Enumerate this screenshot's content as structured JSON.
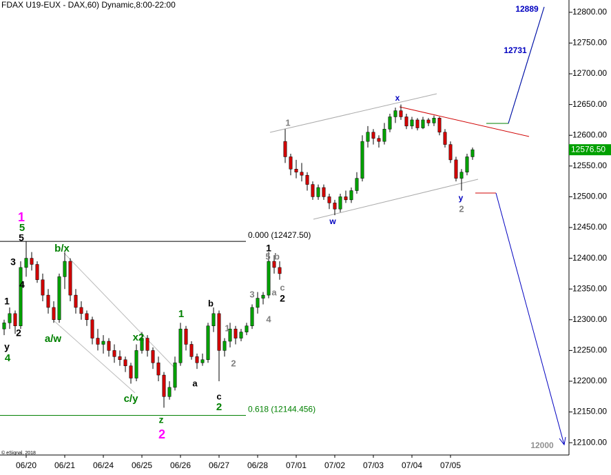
{
  "chart_data": {
    "type": "candlestick",
    "title": "FDAX U19-EUX - DAX,60) Dynamic,8:00-22:00",
    "credit": "© eSignal, 2018",
    "x": [
      0,
      1,
      2,
      3,
      4,
      5,
      6,
      7,
      8,
      9,
      10,
      11,
      12,
      13,
      14,
      15,
      16,
      17,
      18,
      19,
      20,
      21,
      22,
      23,
      24,
      25,
      26,
      27,
      28,
      29,
      30,
      31,
      32,
      33,
      34,
      35,
      36,
      37,
      38,
      39,
      40,
      41,
      42,
      43,
      44,
      45,
      46,
      47,
      48,
      49,
      50,
      51,
      52,
      53,
      54,
      55,
      56,
      57,
      58,
      59,
      60,
      61,
      62,
      63,
      64,
      65,
      66,
      67,
      68,
      69,
      70,
      71,
      72,
      73,
      74,
      75,
      76,
      77,
      78,
      79,
      80,
      81,
      82,
      83,
      84,
      85
    ],
    "open": [
      12285,
      12295,
      12310,
      12290,
      12385,
      12400,
      12390,
      12365,
      12340,
      12320,
      12300,
      12370,
      12395,
      12340,
      12320,
      12310,
      12300,
      12270,
      12260,
      12265,
      12250,
      12240,
      12235,
      12225,
      12205,
      12250,
      12270,
      12250,
      12230,
      12210,
      12175,
      12190,
      12230,
      12285,
      12260,
      12240,
      12230,
      12235,
      12290,
      12310,
      12250,
      12265,
      12285,
      12270,
      12280,
      12290,
      12320,
      12335,
      12340,
      12395,
      12385,
      12590,
      12565,
      12545,
      12540,
      12535,
      12520,
      12500,
      12515,
      12500,
      12490,
      12480,
      12500,
      12495,
      12510,
      12530,
      12590,
      12605,
      12595,
      12590,
      12610,
      12630,
      12640,
      12630,
      12615,
      12625,
      12612,
      12625,
      12620,
      12628,
      12605,
      12585,
      12560,
      12530,
      12540,
      12565
    ],
    "high": [
      12300,
      12320,
      12315,
      12395,
      12427,
      12410,
      12395,
      12375,
      12350,
      12330,
      12375,
      12410,
      12400,
      12350,
      12330,
      12315,
      12305,
      12285,
      12275,
      12270,
      12260,
      12250,
      12240,
      12230,
      12260,
      12280,
      12275,
      12255,
      12240,
      12215,
      12200,
      12240,
      12295,
      12290,
      12265,
      12245,
      12245,
      12295,
      12320,
      12315,
      12270,
      12295,
      12290,
      12285,
      12295,
      12325,
      12345,
      12345,
      12410,
      12405,
      12395,
      12610,
      12570,
      12560,
      12555,
      12540,
      12525,
      12520,
      12520,
      12505,
      12495,
      12505,
      12510,
      12515,
      12540,
      12600,
      12615,
      12610,
      12600,
      12620,
      12635,
      12645,
      12650,
      12635,
      12630,
      12628,
      12630,
      12628,
      12632,
      12630,
      12610,
      12590,
      12565,
      12545,
      12570,
      12580
    ],
    "low": [
      12275,
      12285,
      12277,
      12285,
      12370,
      12380,
      12360,
      12330,
      12310,
      12295,
      12295,
      12350,
      12330,
      12310,
      12300,
      12290,
      12260,
      12250,
      12245,
      12240,
      12230,
      12225,
      12215,
      12196,
      12200,
      12245,
      12240,
      12220,
      12200,
      12157,
      12170,
      12185,
      12225,
      12250,
      12235,
      12220,
      12225,
      12230,
      12280,
      12200,
      12240,
      12255,
      12260,
      12265,
      12275,
      12285,
      12310,
      12325,
      12335,
      12375,
      12365,
      12555,
      12535,
      12530,
      12525,
      12510,
      12495,
      12495,
      12495,
      12480,
      12470,
      12475,
      12490,
      12490,
      12505,
      12525,
      12580,
      12585,
      12580,
      12585,
      12605,
      12620,
      12625,
      12610,
      12610,
      12608,
      12610,
      12615,
      12615,
      12600,
      12580,
      12555,
      12525,
      12510,
      12535,
      12560
    ],
    "close": [
      12295,
      12310,
      12290,
      12385,
      12400,
      12390,
      12365,
      12340,
      12320,
      12300,
      12370,
      12395,
      12340,
      12320,
      12310,
      12300,
      12270,
      12260,
      12265,
      12250,
      12240,
      12235,
      12225,
      12205,
      12250,
      12270,
      12250,
      12230,
      12210,
      12175,
      12190,
      12230,
      12285,
      12260,
      12240,
      12230,
      12235,
      12290,
      12310,
      12250,
      12265,
      12285,
      12270,
      12280,
      12290,
      12320,
      12335,
      12340,
      12395,
      12385,
      12375,
      12565,
      12545,
      12540,
      12535,
      12520,
      12500,
      12515,
      12500,
      12490,
      12480,
      12500,
      12495,
      12510,
      12530,
      12590,
      12605,
      12595,
      12590,
      12610,
      12630,
      12640,
      12630,
      12615,
      12625,
      12612,
      12625,
      12620,
      12628,
      12605,
      12585,
      12560,
      12530,
      12540,
      12565,
      12576.5
    ],
    "up_color": "#00a000",
    "down_color": "#d00000",
    "xlim": [
      -0.75,
      102.5
    ],
    "xticks": [
      {
        "value": 4,
        "label": "06/20"
      },
      {
        "value": 11,
        "label": "06/21"
      },
      {
        "value": 18,
        "label": "06/24"
      },
      {
        "value": 25,
        "label": "06/25"
      },
      {
        "value": 32,
        "label": "06/26"
      },
      {
        "value": 39,
        "label": "06/27"
      },
      {
        "value": 46,
        "label": "06/28"
      },
      {
        "value": 53,
        "label": "07/01"
      },
      {
        "value": 60,
        "label": "07/02"
      },
      {
        "value": 67,
        "label": "07/03"
      },
      {
        "value": 74,
        "label": "07/04"
      },
      {
        "value": 81,
        "label": "07/05"
      }
    ],
    "ylim": [
      12080,
      12820
    ],
    "yticks": [
      {
        "value": 12100,
        "label": "12100.00"
      },
      {
        "value": 12150,
        "label": "12150.00"
      },
      {
        "value": 12200,
        "label": "12200.00"
      },
      {
        "value": 12250,
        "label": "12250.00"
      },
      {
        "value": 12300,
        "label": "12300.00"
      },
      {
        "value": 12350,
        "label": "12350.00"
      },
      {
        "value": 12400,
        "label": "12400.00"
      },
      {
        "value": 12450,
        "label": "12450.00"
      },
      {
        "value": 12500,
        "label": "12500.00"
      },
      {
        "value": 12550,
        "label": "12550.00"
      },
      {
        "value": 12600,
        "label": "12600.00"
      },
      {
        "value": 12650,
        "label": "12650.00"
      },
      {
        "value": 12700,
        "label": "12700.00"
      },
      {
        "value": 12750,
        "label": "12750.00"
      },
      {
        "value": 12800,
        "label": "12800.00"
      }
    ],
    "last_price": {
      "value": 12576.5,
      "label": "12576.50",
      "color": "#00a000"
    },
    "levels": [
      {
        "value": 12427.5,
        "label": "0.000 (12427.50)",
        "color": "#000000"
      },
      {
        "value": 12144.456,
        "label": "0.618 (12144.456)",
        "color": "#008000"
      }
    ],
    "annotations": [
      {
        "text": "1",
        "color": "#ff00ff"
      },
      {
        "text": "5",
        "color": "#008000"
      },
      {
        "text": "5",
        "color": "#000000"
      },
      {
        "text": "3",
        "color": "#000000"
      },
      {
        "text": "4",
        "color": "#000000"
      },
      {
        "text": "1",
        "color": "#000000"
      },
      {
        "text": "2",
        "color": "#000000"
      },
      {
        "text": "y",
        "color": "#000000"
      },
      {
        "text": "4",
        "color": "#008000"
      },
      {
        "text": "b/x",
        "color": "#008000"
      },
      {
        "text": "a/w",
        "color": "#008000"
      },
      {
        "text": "x2",
        "color": "#008000"
      },
      {
        "text": "c/y",
        "color": "#008000"
      },
      {
        "text": "z",
        "color": "#008000"
      },
      {
        "text": "2",
        "color": "#ff00ff"
      },
      {
        "text": "1",
        "color": "#008000"
      },
      {
        "text": "b",
        "color": "#000000"
      },
      {
        "text": "a",
        "color": "#000000"
      },
      {
        "text": "1",
        "color": "#808080"
      },
      {
        "text": "2",
        "color": "#808080"
      },
      {
        "text": "c",
        "color": "#000000"
      },
      {
        "text": "2",
        "color": "#008000"
      },
      {
        "text": "3",
        "color": "#808080"
      },
      {
        "text": "4",
        "color": "#808080"
      },
      {
        "text": "a",
        "color": "#808080"
      },
      {
        "text": "1",
        "color": "#000000"
      },
      {
        "text": "5",
        "color": "#808080"
      },
      {
        "text": "b",
        "color": "#808080"
      },
      {
        "text": "c",
        "color": "#808080"
      },
      {
        "text": "2",
        "color": "#000000"
      },
      {
        "text": "1",
        "color": "#808080"
      },
      {
        "text": "w",
        "color": "#0000c0"
      },
      {
        "text": "x",
        "color": "#0000c0"
      },
      {
        "text": "y",
        "color": "#0000c0"
      },
      {
        "text": "2",
        "color": "#808080"
      },
      {
        "text": "12889",
        "color": "#0000c0"
      },
      {
        "text": "12731",
        "color": "#0000c0"
      },
      {
        "text": "12000",
        "color": "#909090"
      }
    ]
  }
}
